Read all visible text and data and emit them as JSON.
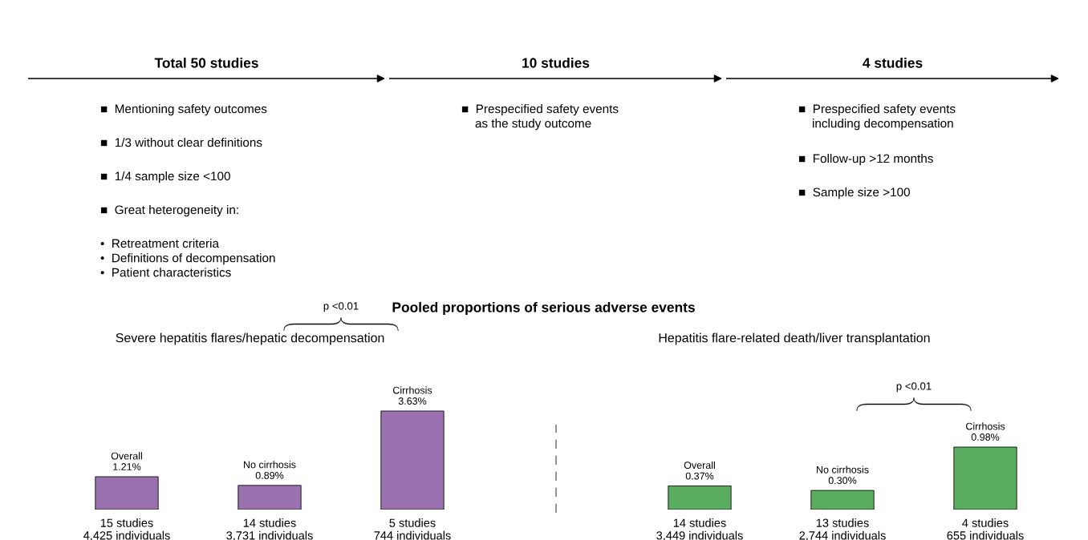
{
  "chart_data": [
    {
      "type": "other",
      "title": "Total 50 studies",
      "annotations": [
        "■  Mentioning safety outcomes",
        "■  1/3 without clear definitions",
        "■  1/4 sample size <100",
        "■  Great heterogeneity in:",
        "•  Retreatment criteria\n•  Definitions of decompensation\n•  Patient characteristics"
      ]
    },
    {
      "type": "other",
      "title": "10 studies",
      "annotations": [
        "■  Prespecified safety events\n    as the study outcome"
      ]
    },
    {
      "type": "other",
      "title": "4 studies",
      "annotations": [
        "■  Prespecified safety events\n    including decompensation",
        "■  Follow-up >12 months",
        "■  Sample size >100"
      ]
    },
    {
      "type": "other",
      "title": "Pooled proportions of serious adverse events"
    },
    {
      "type": "bar",
      "title": "Severe hepatitis flares/hepatic decompensation",
      "categories": [
        "15 studies\n4,425 individuals",
        "14 studies\n3,731 individuals",
        "5 studies\n744 individuals"
      ],
      "values": [
        1.21,
        0.89,
        3.63
      ],
      "value_labels": [
        "Overall\n1.21%",
        "No cirrhosis\n0.89%",
        "Cirrhosis\n3.63%"
      ],
      "color": "#9b72b0",
      "annotations": [
        "p <0.01"
      ]
    },
    {
      "type": "bar",
      "title": "Hepatitis flare-related death/liver transplantation",
      "categories": [
        "14 studies\n3,449 individuals",
        "13 studies\n2,744 individuals",
        "4 studies\n655 individuals"
      ],
      "values": [
        0.37,
        0.3,
        0.98
      ],
      "value_labels": [
        "Overall\n0.37%",
        "No cirrhosis\n0.30%",
        "Cirrhosis\n0.98%"
      ],
      "color": "#5aad5e",
      "annotations": [
        "p <0.01"
      ]
    }
  ]
}
